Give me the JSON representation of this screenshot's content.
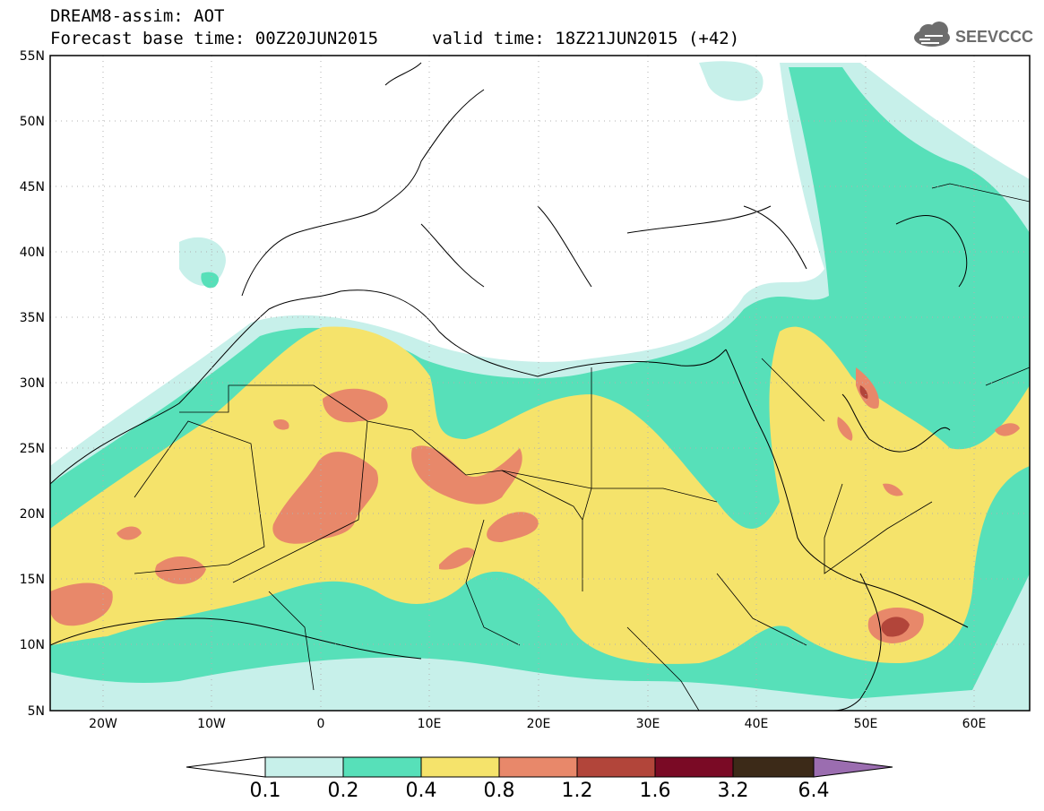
{
  "header": {
    "title": "DREAM8-assim: AOT",
    "base_time": "Forecast base time: 00Z20JUN2015",
    "valid_time": "valid time: 18Z21JUN2015 (+42)"
  },
  "logo": {
    "text": "SEEVCCC",
    "icon": "cloud-icon"
  },
  "map": {
    "lat_labels": [
      "55N",
      "50N",
      "45N",
      "40N",
      "35N",
      "30N",
      "25N",
      "20N",
      "15N",
      "10N",
      "5N"
    ],
    "lon_labels": [
      "20W",
      "10W",
      "0",
      "10E",
      "20E",
      "30E",
      "40E",
      "50E",
      "60E"
    ],
    "lon_range": [
      -25,
      65
    ],
    "lat_range": [
      5,
      55
    ]
  },
  "legend": {
    "labels": [
      "0.1",
      "0.2",
      "0.4",
      "0.8",
      "1.2",
      "1.6",
      "3.2",
      "6.4"
    ],
    "colors": [
      "#ffffff",
      "#c7f0ea",
      "#57e0b9",
      "#f5e36b",
      "#e8886a",
      "#b2453a",
      "#7a0a25",
      "#3c2a18",
      "#9b6db0"
    ]
  },
  "colors": {
    "c1": "#c7f0ea",
    "c2": "#57e0b9",
    "c3": "#f5e36b",
    "c4": "#e8886a",
    "c5": "#b2453a"
  }
}
